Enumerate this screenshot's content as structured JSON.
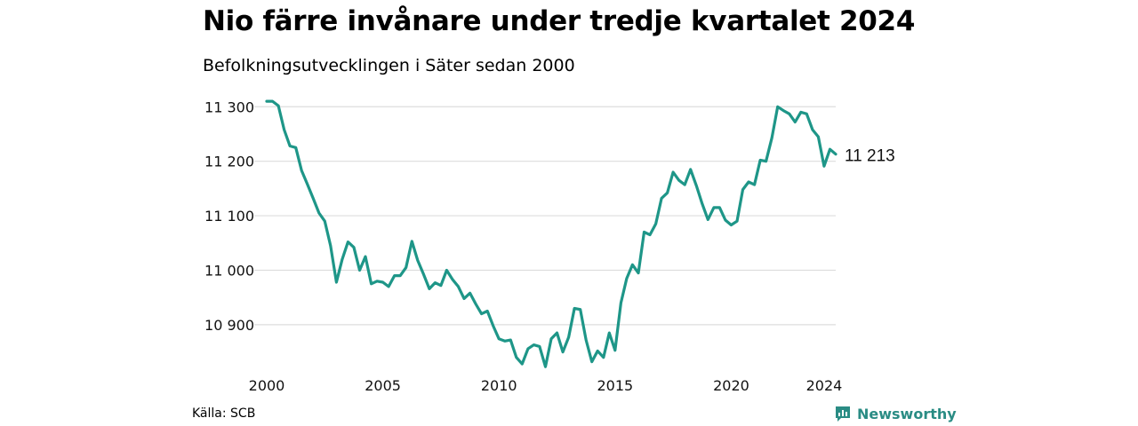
{
  "header": {
    "title": "Nio färre invånare under tredje kvartalet 2024",
    "subtitle": "Befolkningsutvecklingen i Säter sedan 2000"
  },
  "footer": {
    "source": "Källa: SCB",
    "logo_text": "Newsworthy"
  },
  "colors": {
    "line": "#1e9688",
    "grid": "#dddddd",
    "logo": "#2a8c84"
  },
  "chart_data": {
    "type": "line",
    "title": "Nio färre invånare under tredje kvartalet 2024",
    "subtitle": "Befolkningsutvecklingen i Säter sedan 2000",
    "xlabel": "",
    "ylabel": "",
    "grid": "horizontal",
    "legend": "none",
    "xlim": [
      2000,
      2024.5
    ],
    "ylim": [
      10820,
      11320
    ],
    "y_ticks": [
      10900,
      11000,
      11100,
      11200,
      11300
    ],
    "y_tick_labels": [
      "10 900",
      "11 000",
      "11 100",
      "11 200",
      "11 300"
    ],
    "x_ticks": [
      2000,
      2005,
      2010,
      2015,
      2020,
      2024
    ],
    "x_tick_labels": [
      "2000",
      "2005",
      "2010",
      "2015",
      "2020",
      "2024"
    ],
    "end_label": "11 213",
    "series": [
      {
        "x": [
          2000.0,
          2000.25,
          2000.5,
          2000.75,
          2001.0,
          2001.25,
          2001.5,
          2001.75,
          2002.0,
          2002.25,
          2002.5,
          2002.75,
          2003.0,
          2003.25,
          2003.5,
          2003.75,
          2004.0,
          2004.25,
          2004.5,
          2004.75,
          2005.0,
          2005.25,
          2005.5,
          2005.75,
          2006.0,
          2006.25,
          2006.5,
          2006.75,
          2007.0,
          2007.25,
          2007.5,
          2007.75,
          2008.0,
          2008.25,
          2008.5,
          2008.75,
          2009.0,
          2009.25,
          2009.5,
          2009.75,
          2010.0,
          2010.25,
          2010.5,
          2010.75,
          2011.0,
          2011.25,
          2011.5,
          2011.75,
          2012.0,
          2012.25,
          2012.5,
          2012.75,
          2013.0,
          2013.25,
          2013.5,
          2013.75,
          2014.0,
          2014.25,
          2014.5,
          2014.75,
          2015.0,
          2015.25,
          2015.5,
          2015.75,
          2016.0,
          2016.25,
          2016.5,
          2016.75,
          2017.0,
          2017.25,
          2017.5,
          2017.75,
          2018.0,
          2018.25,
          2018.5,
          2018.75,
          2019.0,
          2019.25,
          2019.5,
          2019.75,
          2020.0,
          2020.25,
          2020.5,
          2020.75,
          2021.0,
          2021.25,
          2021.5,
          2021.75,
          2022.0,
          2022.25,
          2022.5,
          2022.75,
          2023.0,
          2023.25,
          2023.5,
          2023.75,
          2024.0,
          2024.25,
          2024.5
        ],
        "values": [
          11310,
          11310,
          11302,
          11258,
          11228,
          11225,
          11183,
          11158,
          11132,
          11105,
          11090,
          11045,
          10978,
          11020,
          11052,
          11042,
          11000,
          11025,
          10975,
          10980,
          10978,
          10970,
          10990,
          10990,
          11005,
          11053,
          11018,
          10993,
          10966,
          10977,
          10972,
          11000,
          10983,
          10970,
          10948,
          10958,
          10938,
          10920,
          10925,
          10898,
          10874,
          10870,
          10872,
          10840,
          10828,
          10856,
          10863,
          10860,
          10823,
          10874,
          10885,
          10850,
          10877,
          10930,
          10928,
          10872,
          10832,
          10852,
          10840,
          10885,
          10853,
          10940,
          10985,
          11010,
          10995,
          11070,
          11065,
          11085,
          11132,
          11142,
          11180,
          11165,
          11157,
          11185,
          11155,
          11122,
          11093,
          11115,
          11115,
          11092,
          11083,
          11090,
          11148,
          11162,
          11157,
          11202,
          11200,
          11243,
          11300,
          11293,
          11287,
          11272,
          11290,
          11287,
          11258,
          11245,
          11191,
          11222,
          11213
        ]
      }
    ]
  }
}
